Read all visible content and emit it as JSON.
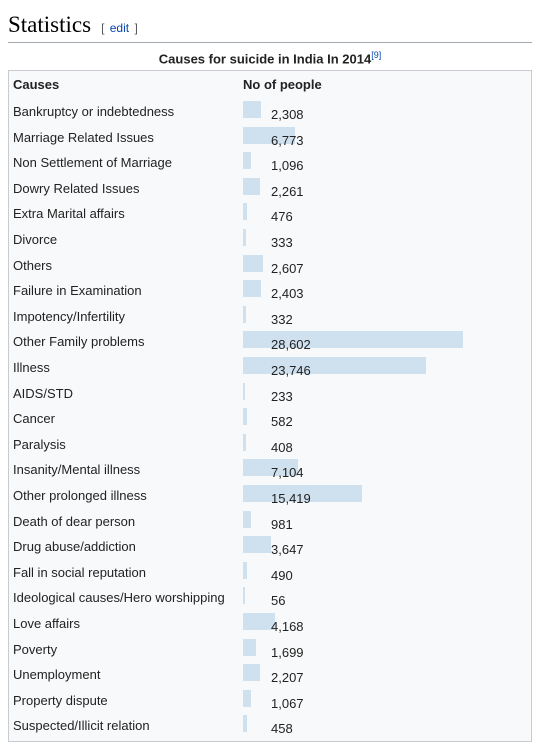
{
  "section": {
    "title": "Statistics",
    "edit_open": "[",
    "edit_label": "edit",
    "edit_close": "]"
  },
  "chart_data": {
    "type": "bar",
    "title": "Causes for suicide in India In 2014",
    "title_ref": "[9]",
    "category_header": "Causes",
    "value_header": "No of people",
    "bar_color": "#cfe0ef",
    "categories": [
      "Bankruptcy or indebtedness",
      "Marriage Related Issues",
      "Non Settlement of Marriage",
      "Dowry Related Issues",
      "Extra Marital affairs",
      "Divorce",
      "Others",
      "Failure in Examination",
      "Impotency/Infertility",
      "Other Family problems",
      "Illness",
      "AIDS/STD",
      "Cancer",
      "Paralysis",
      "Insanity/Mental illness",
      "Other prolonged illness",
      "Death of dear person",
      "Drug abuse/addiction",
      "Fall in social reputation",
      "Ideological causes/Hero worshipping",
      "Love affairs",
      "Poverty",
      "Unemployment",
      "Property dispute",
      "Suspected/Illicit relation"
    ],
    "values": [
      2308,
      6773,
      1096,
      2261,
      476,
      333,
      2607,
      2403,
      332,
      28602,
      23746,
      233,
      582,
      408,
      7104,
      15419,
      981,
      3647,
      490,
      56,
      4168,
      1699,
      2207,
      1067,
      458
    ],
    "value_labels": [
      "2,308",
      "6,773",
      "1,096",
      "2,261",
      "476",
      "333",
      "2,607",
      "2,403",
      "332",
      "28,602",
      "23,746",
      "233",
      "582",
      "408",
      "7,104",
      "15,419",
      "981",
      "3,647",
      "490",
      "56",
      "4,168",
      "1,699",
      "2,207",
      "1,067",
      "458"
    ]
  }
}
